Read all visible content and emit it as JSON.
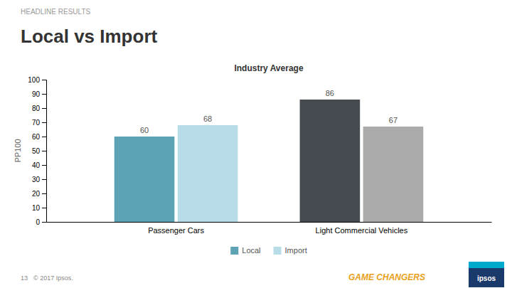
{
  "chart_data": {
    "type": "bar",
    "title": "Local vs Import",
    "subtitle": "Industry Average",
    "ylabel": "PP100",
    "categories": [
      "Passenger Cars",
      "Light Commercial Vehicles"
    ],
    "series": [
      {
        "name": "Local",
        "color": "#5ba3b5",
        "colors": [
          "#5ba3b5",
          "#454b50"
        ],
        "values": [
          60,
          86
        ]
      },
      {
        "name": "Import",
        "color": "#b8dde8",
        "colors": [
          "#b8dde8",
          "#aaaaaa"
        ],
        "values": [
          68,
          67
        ]
      }
    ],
    "ylim": [
      0,
      100
    ],
    "yticks": [
      0,
      10,
      20,
      30,
      40,
      50,
      60,
      70,
      80,
      90,
      100
    ],
    "grid": false,
    "legend": "bottom",
    "data_labels": true,
    "annotations": [
      "HEADLINE RESULTS",
      "13",
      "© 2017 Ipsos.",
      "GAME CHANGERS",
      "ipsos"
    ]
  }
}
